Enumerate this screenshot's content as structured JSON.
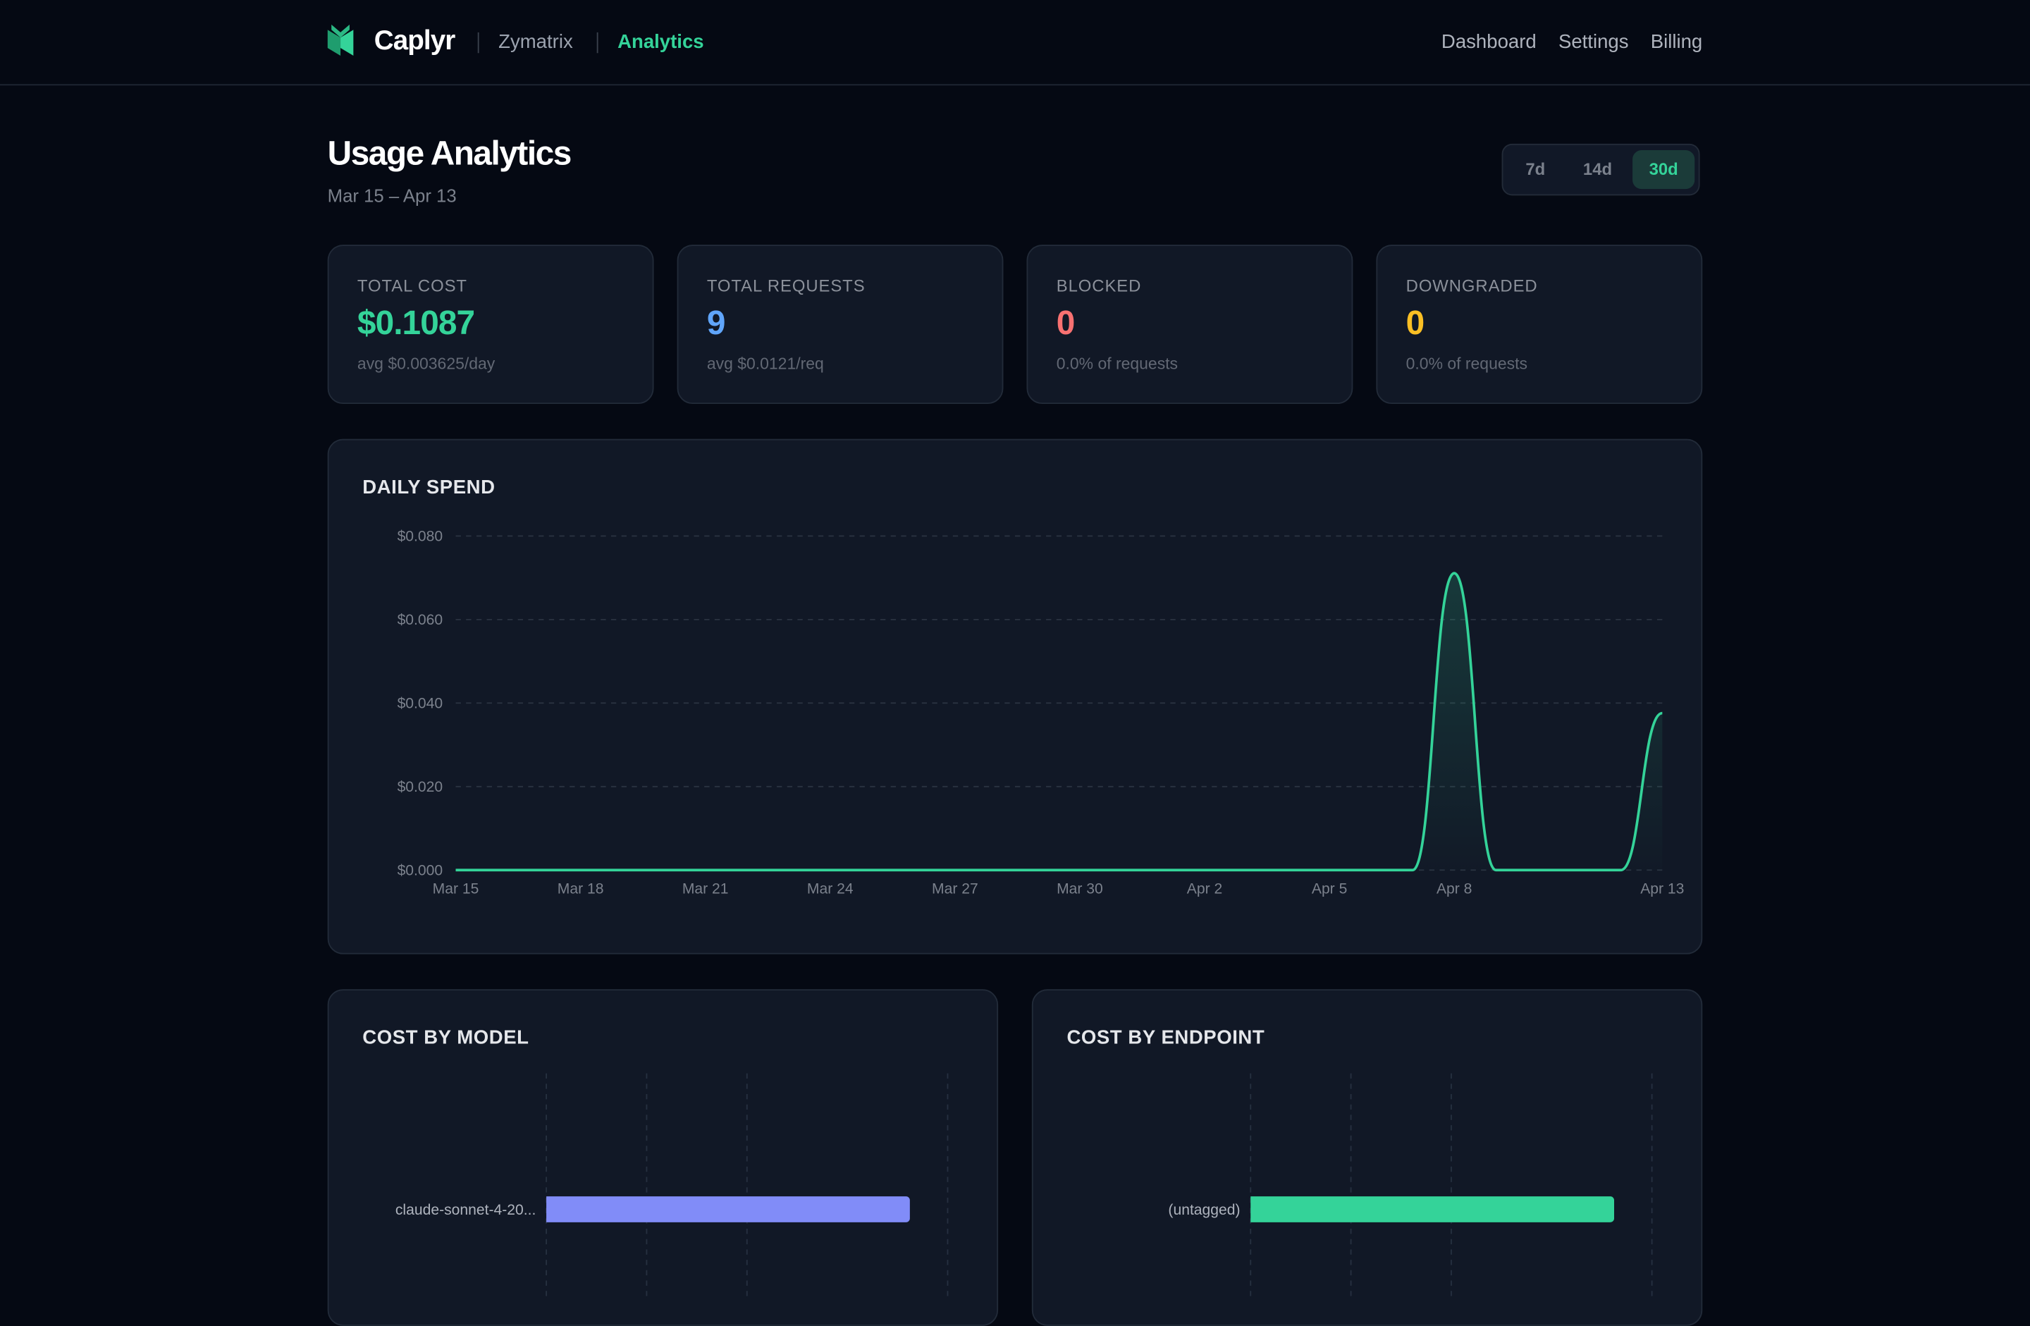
{
  "header": {
    "brand": "Caplyr",
    "breadcrumbs": [
      "Zymatrix",
      "Analytics"
    ],
    "nav": [
      "Dashboard",
      "Settings",
      "Billing"
    ]
  },
  "page": {
    "title": "Usage Analytics",
    "date_range": "Mar 15 – Apr 13",
    "range_options": [
      "7d",
      "14d",
      "30d"
    ],
    "selected_range": "30d"
  },
  "stats": [
    {
      "label": "TOTAL COST",
      "value": "$0.1087",
      "sub": "avg $0.003625/day",
      "color": "#34d399"
    },
    {
      "label": "TOTAL REQUESTS",
      "value": "9",
      "sub": "avg $0.0121/req",
      "color": "#60a5fa"
    },
    {
      "label": "BLOCKED",
      "value": "0",
      "sub": "0.0% of requests",
      "color": "#f87171"
    },
    {
      "label": "DOWNGRADED",
      "value": "0",
      "sub": "0.0% of requests",
      "color": "#fbbf24"
    }
  ],
  "chart_data": [
    {
      "type": "area",
      "title": "DAILY SPEND",
      "xlabel": "",
      "ylabel": "",
      "ylim": [
        0,
        0.08
      ],
      "y_ticks": [
        "$0.000",
        "$0.020",
        "$0.040",
        "$0.060",
        "$0.080"
      ],
      "y_tick_values": [
        0,
        0.02,
        0.04,
        0.06,
        0.08
      ],
      "x_tick_labels": [
        "Mar 15",
        "Mar 18",
        "Mar 21",
        "Mar 24",
        "Mar 27",
        "Mar 30",
        "Apr 2",
        "Apr 5",
        "Apr 8",
        "Apr 13"
      ],
      "x_tick_index": [
        0,
        3,
        6,
        9,
        12,
        15,
        18,
        21,
        24,
        29
      ],
      "values": [
        0,
        0,
        0,
        0,
        0,
        0,
        0,
        0,
        0,
        0,
        0,
        0,
        0,
        0,
        0,
        0,
        0,
        0,
        0,
        0,
        0,
        0,
        0,
        0,
        0.0711,
        0,
        0,
        0,
        0,
        0.0376
      ],
      "color": "#34d399",
      "grid": true
    },
    {
      "type": "bar",
      "orientation": "horizontal",
      "title": "COST BY MODEL",
      "categories": [
        "claude-sonnet-4-20..."
      ],
      "values": [
        0.1087
      ],
      "xlim": [
        0,
        0.12
      ],
      "color": "#818cf8"
    },
    {
      "type": "bar",
      "orientation": "horizontal",
      "title": "COST BY ENDPOINT",
      "categories": [
        "(untagged)"
      ],
      "values": [
        0.1087
      ],
      "xlim": [
        0,
        0.12
      ],
      "color": "#34d399"
    }
  ]
}
